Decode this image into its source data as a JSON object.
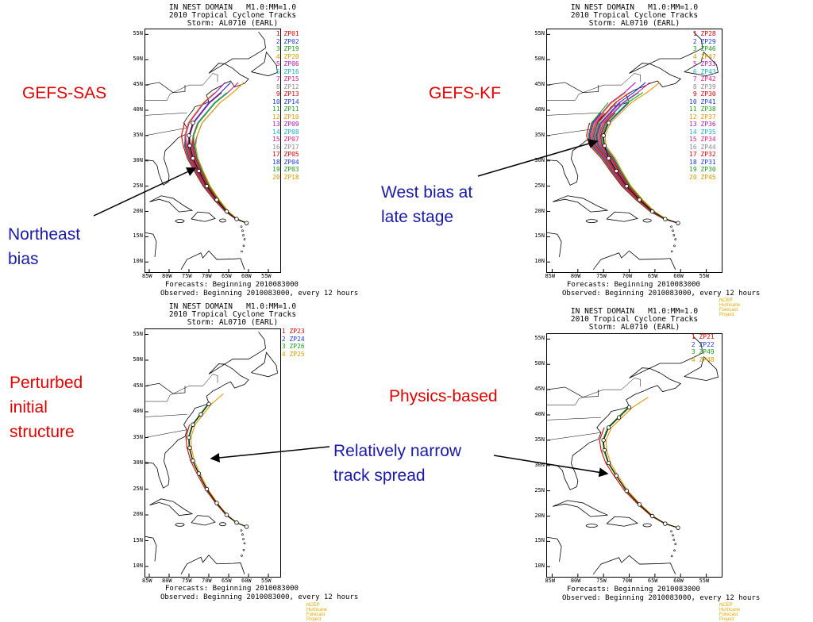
{
  "panel_header": {
    "line1": "IN NEST DOMAIN   M1.0:MM=1.0",
    "line2": "2010 Tropical Cyclone Tracks",
    "line3": "Storm: AL0710 (EARL)"
  },
  "footer": {
    "line1": "Forecasts: Beginning 2010083000",
    "line2": "Observed: Beginning 2010083000, every 12 hours"
  },
  "credit": "NCEP Hurricane Forecast Project",
  "lat_labels": [
    "55N",
    "50N",
    "45N",
    "40N",
    "35N",
    "30N",
    "25N",
    "20N",
    "15N",
    "10N"
  ],
  "lon_labels": [
    "85W",
    "80W",
    "75W",
    "70W",
    "65W",
    "60W",
    "55W"
  ],
  "panels": [
    {
      "id": "gefs-sas",
      "legend": [
        {
          "n": "1",
          "id": "ZP01",
          "color": "#e00000"
        },
        {
          "n": "2",
          "id": "ZP02",
          "color": "#1c3cd8"
        },
        {
          "n": "3",
          "id": "ZP19",
          "color": "#1c9e1c"
        },
        {
          "n": "4",
          "id": "ZP20",
          "color": "#e09800"
        },
        {
          "n": "5",
          "id": "ZP06",
          "color": "#b01cb0"
        },
        {
          "n": "6",
          "id": "ZP16",
          "color": "#18b0c8"
        },
        {
          "n": "7",
          "id": "ZP15",
          "color": "#e02080"
        },
        {
          "n": "8",
          "id": "ZP12",
          "color": "#8c8c8c"
        },
        {
          "n": "9",
          "id": "ZP13",
          "color": "#e00000"
        },
        {
          "n": "10",
          "id": "ZP14",
          "color": "#1c3cd8"
        },
        {
          "n": "11",
          "id": "ZP11",
          "color": "#1c9e1c"
        },
        {
          "n": "12",
          "id": "ZP10",
          "color": "#e09800"
        },
        {
          "n": "13",
          "id": "ZP09",
          "color": "#b01cb0"
        },
        {
          "n": "14",
          "id": "ZP08",
          "color": "#18b0c8"
        },
        {
          "n": "15",
          "id": "ZP07",
          "color": "#e02080"
        },
        {
          "n": "16",
          "id": "ZP17",
          "color": "#8c8c8c"
        },
        {
          "n": "17",
          "id": "ZP05",
          "color": "#e00000"
        },
        {
          "n": "18",
          "id": "ZP04",
          "color": "#1c3cd8"
        },
        {
          "n": "19",
          "id": "ZP03",
          "color": "#1c9e1c"
        },
        {
          "n": "20",
          "id": "ZP18",
          "color": "#e09800"
        }
      ]
    },
    {
      "id": "gefs-kf",
      "legend": [
        {
          "n": "1",
          "id": "ZP28",
          "color": "#e00000"
        },
        {
          "n": "2",
          "id": "ZP29",
          "color": "#1c3cd8"
        },
        {
          "n": "3",
          "id": "ZP46",
          "color": "#1c9e1c"
        },
        {
          "n": "4",
          "id": "ZP47",
          "color": "#e09800"
        },
        {
          "n": "5",
          "id": "ZP33",
          "color": "#b01cb0"
        },
        {
          "n": "6",
          "id": "ZP43",
          "color": "#18b0c8"
        },
        {
          "n": "7",
          "id": "ZP42",
          "color": "#e02080"
        },
        {
          "n": "8",
          "id": "ZP39",
          "color": "#8c8c8c"
        },
        {
          "n": "9",
          "id": "ZP30",
          "color": "#e00000"
        },
        {
          "n": "10",
          "id": "ZP41",
          "color": "#1c3cd8"
        },
        {
          "n": "11",
          "id": "ZP38",
          "color": "#1c9e1c"
        },
        {
          "n": "12",
          "id": "ZP37",
          "color": "#e09800"
        },
        {
          "n": "13",
          "id": "ZP36",
          "color": "#b01cb0"
        },
        {
          "n": "14",
          "id": "ZP35",
          "color": "#18b0c8"
        },
        {
          "n": "15",
          "id": "ZP34",
          "color": "#e02080"
        },
        {
          "n": "16",
          "id": "ZP44",
          "color": "#8c8c8c"
        },
        {
          "n": "17",
          "id": "ZP32",
          "color": "#e00000"
        },
        {
          "n": "18",
          "id": "ZP31",
          "color": "#1c3cd8"
        },
        {
          "n": "19",
          "id": "ZP30",
          "color": "#1c9e1c"
        },
        {
          "n": "20",
          "id": "ZP45",
          "color": "#e09800"
        }
      ]
    },
    {
      "id": "perturbed-initial",
      "legend": [
        {
          "n": "1",
          "id": "ZP23",
          "color": "#e00000"
        },
        {
          "n": "2",
          "id": "ZP24",
          "color": "#1c3cd8"
        },
        {
          "n": "3",
          "id": "ZP26",
          "color": "#1c9e1c"
        },
        {
          "n": "4",
          "id": "ZP25",
          "color": "#e09800"
        }
      ]
    },
    {
      "id": "physics-based",
      "legend": [
        {
          "n": "1",
          "id": "ZP21",
          "color": "#e00000"
        },
        {
          "n": "2",
          "id": "ZP22",
          "color": "#1c3cd8"
        },
        {
          "n": "3",
          "id": "ZP49",
          "color": "#1c9e1c"
        },
        {
          "n": "4",
          "id": "ZP48",
          "color": "#e09800"
        }
      ]
    }
  ],
  "labels": {
    "gefs_sas": "GEFS-SAS",
    "gefs_kf": "GEFS-KF",
    "perturbed_1": "Perturbed",
    "perturbed_2": "initial",
    "perturbed_3": "structure",
    "physics_based": "Physics-based",
    "northeast_1": "Northeast",
    "northeast_2": "bias",
    "west_bias_1": "West bias at",
    "west_bias_2": "late stage",
    "narrow_1": "Relatively narrow",
    "narrow_2": "track spread"
  },
  "colors": {
    "red_label": "#e00000",
    "blue_label": "#1a1aa6",
    "credit": "#e0a600"
  }
}
